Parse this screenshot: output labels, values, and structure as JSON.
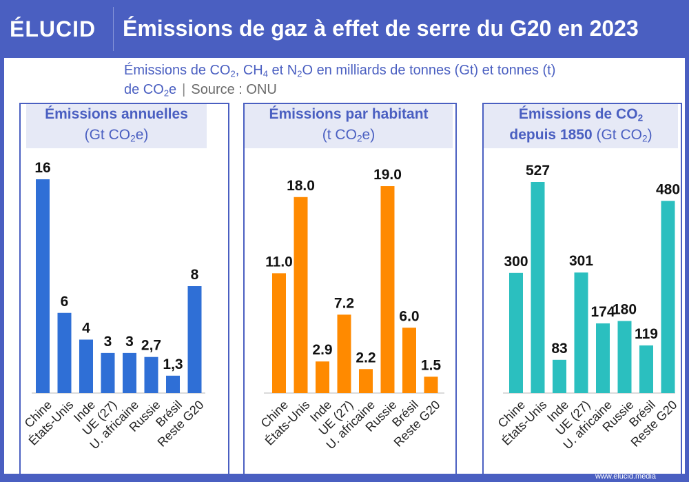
{
  "header": {
    "logo": "ÉLUCID",
    "title": "Émissions de gaz à effet de serre du G20 en 2023"
  },
  "subtitle": {
    "line1_parts": [
      "Émissions de CO",
      "2",
      ", CH",
      "4",
      " et N",
      "2",
      "O en milliards de tonnes (Gt) et tonnes (t)"
    ],
    "line2_parts": [
      "de CO",
      "2",
      "e"
    ],
    "separator": "|",
    "source": "Source : ONU"
  },
  "footer": "www.elucid.media",
  "colors": {
    "brand": "#4a5fc1",
    "blue": "#2f6fd6",
    "orange": "#ff8a00",
    "teal": "#2bbfbf",
    "title_bg": "#e6e9f6"
  },
  "chart_data": [
    {
      "type": "bar",
      "title_bold": "Émissions annuelles",
      "title_unit_parts": [
        "(Gt CO",
        "2",
        "e)"
      ],
      "categories": [
        "Chine",
        "États-Unis",
        "Inde",
        "UE (27)",
        "U. africaine",
        "Russie",
        "Brésil",
        "Reste G20"
      ],
      "values": [
        16,
        6,
        4,
        3,
        3,
        2.7,
        1.3,
        8
      ],
      "labels": [
        "16",
        "6",
        "4",
        "3",
        "3",
        "2,7",
        "1,3",
        "8"
      ],
      "ylim": [
        0,
        16
      ]
    },
    {
      "type": "bar",
      "title_bold": "Émissions par habitant",
      "title_unit_parts": [
        "(t CO",
        "2",
        "e)"
      ],
      "categories": [
        "Chine",
        "États-Unis",
        "Inde",
        "UE (27)",
        "U. africaine",
        "Russie",
        "Brésil",
        "Reste G20"
      ],
      "values": [
        11.0,
        18.0,
        2.9,
        7.2,
        2.2,
        19.0,
        6.0,
        1.5
      ],
      "labels": [
        "11.0",
        "18.0",
        "2.9",
        "7.2",
        "2.2",
        "19.0",
        "6.0",
        "1.5"
      ],
      "ylim": [
        0,
        19
      ]
    },
    {
      "type": "bar",
      "title_bold_parts": [
        "Émissions de CO",
        "2",
        "depuis 1850"
      ],
      "title_unit_parts": [
        "(Gt CO",
        "2",
        ")"
      ],
      "categories": [
        "Chine",
        "États-Unis",
        "Inde",
        "UE (27)",
        "U. africaine",
        "Russie",
        "Brésil",
        "Reste G20"
      ],
      "values": [
        300,
        527,
        83,
        301,
        174,
        180,
        119,
        480
      ],
      "labels": [
        "300",
        "527",
        "83",
        "301",
        "174",
        "180",
        "119",
        "480"
      ],
      "ylim": [
        0,
        527
      ]
    }
  ]
}
